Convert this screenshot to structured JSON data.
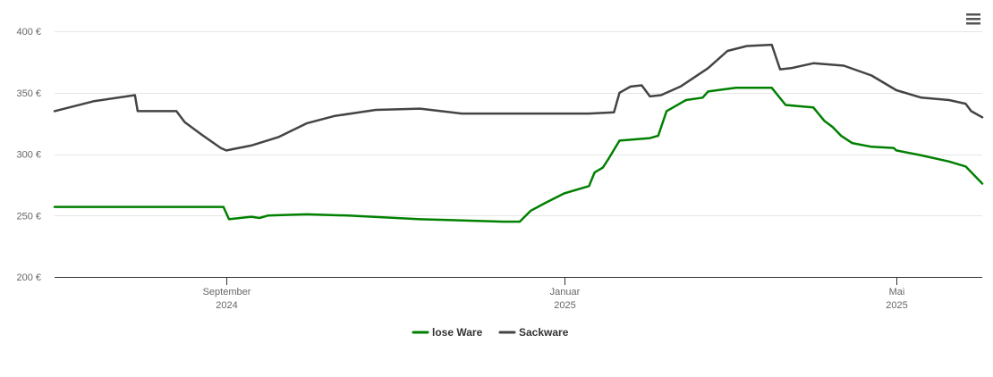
{
  "menu_icon": "hamburger-menu-icon",
  "chart_data": {
    "type": "line",
    "y_unit": "€",
    "ylim": [
      200,
      400
    ],
    "y_ticks": [
      {
        "value": 400,
        "label": "400 €"
      },
      {
        "value": 350,
        "label": "350 €"
      },
      {
        "value": 300,
        "label": "300 €"
      },
      {
        "value": 250,
        "label": "250 €"
      },
      {
        "value": 200,
        "label": "200 €"
      }
    ],
    "xlim": [
      "2024-07-01",
      "2025-06-01"
    ],
    "x_ticks": [
      {
        "date": "2024-09-01",
        "line1": "September",
        "line2": "2024"
      },
      {
        "date": "2025-01-01",
        "line1": "Januar",
        "line2": "2025"
      },
      {
        "date": "2025-05-01",
        "line1": "Mai",
        "line2": "2025"
      }
    ],
    "grid": true,
    "legend_position": "bottom-center",
    "series": [
      {
        "name": "lose Ware",
        "color": "#008000",
        "points": [
          [
            "2024-07-01",
            257
          ],
          [
            "2024-08-31",
            257
          ],
          [
            "2024-09-02",
            247
          ],
          [
            "2024-09-10",
            249
          ],
          [
            "2024-09-13",
            248
          ],
          [
            "2024-09-16",
            250
          ],
          [
            "2024-09-30",
            251
          ],
          [
            "2024-10-15",
            250
          ],
          [
            "2024-11-10",
            247
          ],
          [
            "2024-12-10",
            245
          ],
          [
            "2024-12-16",
            245
          ],
          [
            "2024-12-20",
            254
          ],
          [
            "2024-12-25",
            260
          ],
          [
            "2025-01-01",
            268
          ],
          [
            "2025-01-10",
            274
          ],
          [
            "2025-01-12",
            285
          ],
          [
            "2025-01-15",
            289
          ],
          [
            "2025-01-17",
            296
          ],
          [
            "2025-01-21",
            311
          ],
          [
            "2025-02-01",
            313
          ],
          [
            "2025-02-04",
            315
          ],
          [
            "2025-02-07",
            335
          ],
          [
            "2025-02-14",
            344
          ],
          [
            "2025-02-20",
            346
          ],
          [
            "2025-02-22",
            351
          ],
          [
            "2025-03-04",
            354
          ],
          [
            "2025-03-17",
            354
          ],
          [
            "2025-03-22",
            340
          ],
          [
            "2025-04-01",
            338
          ],
          [
            "2025-04-05",
            327
          ],
          [
            "2025-04-08",
            322
          ],
          [
            "2025-04-11",
            315
          ],
          [
            "2025-04-15",
            309
          ],
          [
            "2025-04-22",
            306
          ],
          [
            "2025-04-30",
            305
          ],
          [
            "2025-05-01",
            303
          ],
          [
            "2025-05-10",
            299
          ],
          [
            "2025-05-20",
            294
          ],
          [
            "2025-05-26",
            290
          ],
          [
            "2025-06-01",
            276
          ]
        ]
      },
      {
        "name": "Sackware",
        "color": "#444444",
        "points": [
          [
            "2024-07-01",
            335
          ],
          [
            "2024-07-15",
            343
          ],
          [
            "2024-07-30",
            348
          ],
          [
            "2024-07-31",
            335
          ],
          [
            "2024-08-14",
            335
          ],
          [
            "2024-08-17",
            326
          ],
          [
            "2024-08-23",
            316
          ],
          [
            "2024-08-30",
            305
          ],
          [
            "2024-09-01",
            303
          ],
          [
            "2024-09-10",
            307
          ],
          [
            "2024-09-20",
            314
          ],
          [
            "2024-09-30",
            325
          ],
          [
            "2024-10-10",
            331
          ],
          [
            "2024-10-25",
            336
          ],
          [
            "2024-11-10",
            337
          ],
          [
            "2024-11-25",
            333
          ],
          [
            "2024-12-15",
            333
          ],
          [
            "2025-01-10",
            333
          ],
          [
            "2025-01-19",
            334
          ],
          [
            "2025-01-21",
            350
          ],
          [
            "2025-01-25",
            355
          ],
          [
            "2025-01-29",
            356
          ],
          [
            "2025-02-01",
            347
          ],
          [
            "2025-02-05",
            348
          ],
          [
            "2025-02-12",
            355
          ],
          [
            "2025-02-22",
            370
          ],
          [
            "2025-03-01",
            384
          ],
          [
            "2025-03-08",
            388
          ],
          [
            "2025-03-17",
            389
          ],
          [
            "2025-03-20",
            369
          ],
          [
            "2025-03-24",
            370
          ],
          [
            "2025-04-01",
            374
          ],
          [
            "2025-04-12",
            372
          ],
          [
            "2025-04-22",
            364
          ],
          [
            "2025-05-01",
            352
          ],
          [
            "2025-05-10",
            346
          ],
          [
            "2025-05-20",
            344
          ],
          [
            "2025-05-26",
            341
          ],
          [
            "2025-05-28",
            335
          ],
          [
            "2025-06-01",
            330
          ]
        ]
      }
    ]
  }
}
